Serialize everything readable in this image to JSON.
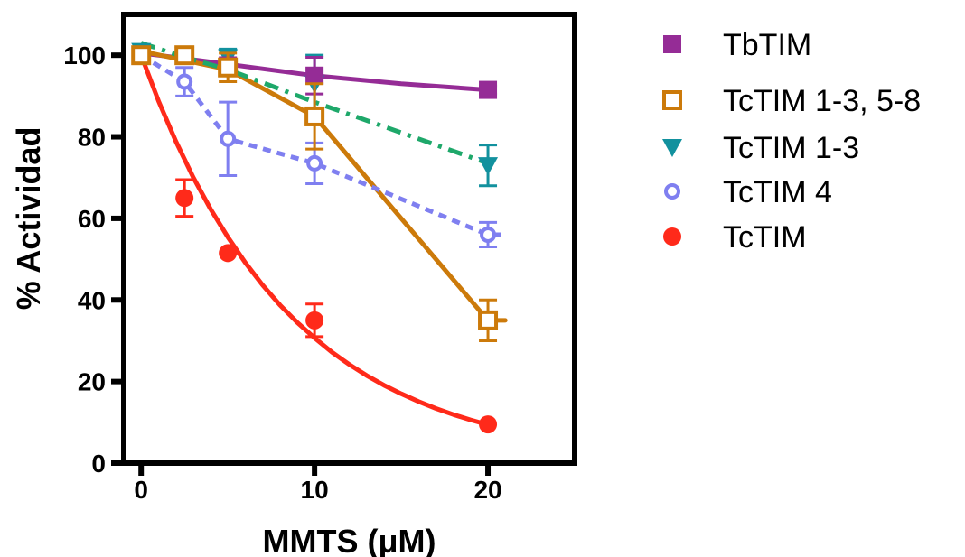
{
  "chart_data": {
    "type": "scatter",
    "xlabel": "MMTS (μM)",
    "ylabel": "% Actividad",
    "xlim": [
      -1,
      25
    ],
    "ylim": [
      0,
      110
    ],
    "xticks": [
      0,
      10,
      20
    ],
    "yticks": [
      0,
      20,
      40,
      60,
      80,
      100
    ],
    "grid": false,
    "legend_position": "right",
    "series": [
      {
        "name": "TbTIM",
        "color": "#952c96",
        "marker": "square-filled",
        "line": "solid",
        "points": [
          {
            "x": 0,
            "y": 100,
            "err": 0
          },
          {
            "x": 2.5,
            "y": 100,
            "err": 0
          },
          {
            "x": 5,
            "y": 97.5,
            "err": 1.5
          },
          {
            "x": 10,
            "y": 95,
            "err": 4.5
          },
          {
            "x": 20,
            "y": 91.5,
            "err": 1
          }
        ],
        "curve": [
          [
            0,
            100.5
          ],
          [
            2.5,
            99.2
          ],
          [
            5,
            97.8
          ],
          [
            10,
            95
          ],
          [
            15,
            93
          ],
          [
            20,
            91.5
          ]
        ]
      },
      {
        "name": "TcTIM 1-3, 5-8",
        "color": "#cc7a0a",
        "marker": "square-open",
        "line": "solid",
        "points": [
          {
            "x": 0,
            "y": 100,
            "err": 0
          },
          {
            "x": 2.5,
            "y": 100,
            "err": 0
          },
          {
            "x": 5,
            "y": 97,
            "err": 3.5
          },
          {
            "x": 10,
            "y": 85,
            "err": 8
          },
          {
            "x": 20,
            "y": 35,
            "err": 5
          }
        ],
        "curve": [
          [
            0,
            101
          ],
          [
            5,
            96.5
          ],
          [
            10,
            85
          ],
          [
            20,
            35
          ],
          [
            21,
            35
          ]
        ]
      },
      {
        "name": "TcTIM 1-3",
        "color": "#12919e",
        "marker": "triangle-down-filled",
        "line": "dashdot",
        "line_color": "#1ea86a",
        "points": [
          {
            "x": 0,
            "y": 101,
            "err": 0
          },
          {
            "x": 2.5,
            "y": 100,
            "err": 0
          },
          {
            "x": 5,
            "y": 99.5,
            "err": 2
          },
          {
            "x": 10,
            "y": 93,
            "err": 7
          },
          {
            "x": 20,
            "y": 73,
            "err": 5
          }
        ],
        "curve": [
          [
            0,
            103
          ],
          [
            2.5,
            99.5
          ],
          [
            5,
            96.5
          ],
          [
            10,
            88.5
          ],
          [
            15,
            81
          ],
          [
            20,
            73.5
          ]
        ]
      },
      {
        "name": "TcTIM 4",
        "color": "#7f7ff0",
        "marker": "circle-open",
        "line": "dotted",
        "points": [
          {
            "x": 0,
            "y": 100,
            "err": 0
          },
          {
            "x": 2.5,
            "y": 93.5,
            "err": 3.5
          },
          {
            "x": 5,
            "y": 79.5,
            "err": 9
          },
          {
            "x": 10,
            "y": 73.5,
            "err": 5
          },
          {
            "x": 20,
            "y": 56,
            "err": 3
          }
        ],
        "curve": [
          [
            0,
            100
          ],
          [
            2.5,
            93.5
          ],
          [
            5,
            79.5
          ],
          [
            10,
            73.5
          ],
          [
            20,
            56
          ],
          [
            21,
            56
          ]
        ]
      },
      {
        "name": "TcTIM",
        "color": "#ff2a1a",
        "marker": "circle-filled",
        "line": "solid",
        "points": [
          {
            "x": 0,
            "y": 100,
            "err": 0
          },
          {
            "x": 2.5,
            "y": 65,
            "err": 4.5
          },
          {
            "x": 5,
            "y": 51.5,
            "err": 0
          },
          {
            "x": 10,
            "y": 35,
            "err": 4
          },
          {
            "x": 20,
            "y": 9.5,
            "err": 0
          }
        ],
        "curve": [
          [
            0,
            100
          ],
          [
            1,
            88.8
          ],
          [
            2,
            78.9
          ],
          [
            3,
            70.1
          ],
          [
            4,
            62.3
          ],
          [
            5,
            55.4
          ],
          [
            6,
            49.2
          ],
          [
            7,
            43.7
          ],
          [
            8,
            38.8
          ],
          [
            9,
            34.5
          ],
          [
            10,
            30.7
          ],
          [
            11,
            27.2
          ],
          [
            12,
            24.2
          ],
          [
            13,
            21.5
          ],
          [
            14,
            19.1
          ],
          [
            15,
            17.0
          ],
          [
            16,
            15.1
          ],
          [
            17,
            13.4
          ],
          [
            18,
            11.9
          ],
          [
            19,
            10.6
          ],
          [
            20,
            9.4
          ]
        ]
      }
    ]
  }
}
